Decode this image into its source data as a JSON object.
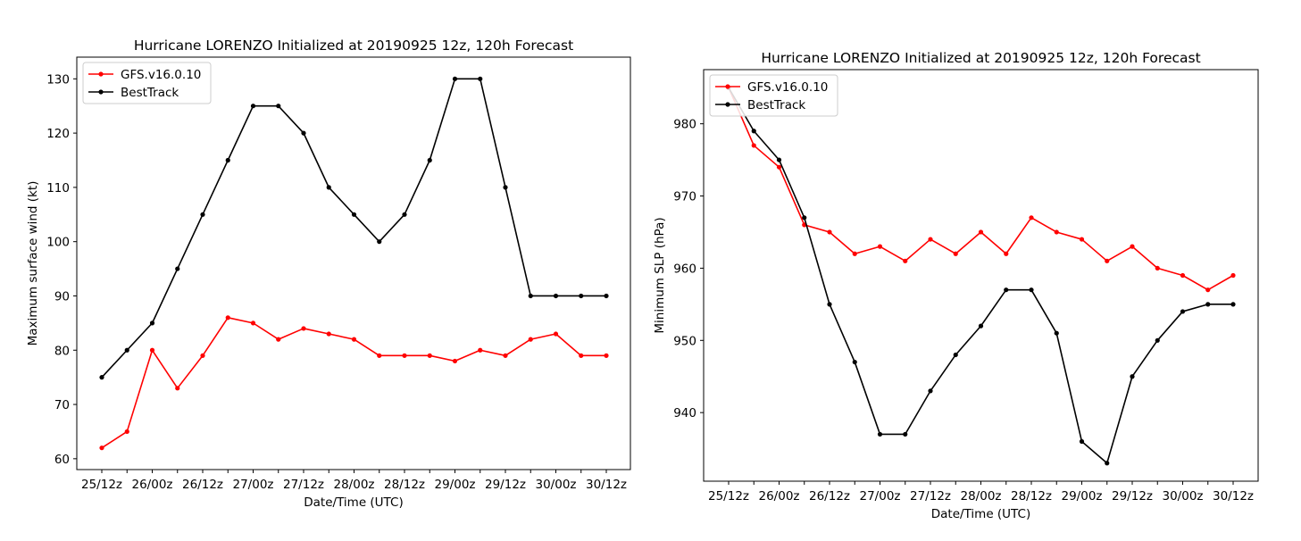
{
  "chart_data": [
    {
      "type": "line",
      "title": "Hurricane LORENZO Initialized at 20190925 12z, 120h Forecast",
      "xlabel": "Date/Time (UTC)",
      "ylabel": "Maximum surface wind (kt)",
      "ylim": [
        58,
        134
      ],
      "yticks": [
        60,
        70,
        80,
        90,
        100,
        110,
        120,
        130
      ],
      "xtick_labels": [
        "25/12z",
        "26/00z",
        "26/12z",
        "27/00z",
        "27/12z",
        "28/00z",
        "28/12z",
        "29/00z",
        "29/12z",
        "30/00z",
        "30/12z"
      ],
      "n_points": 21,
      "grid": false,
      "legend": "upper-left",
      "series": [
        {
          "name": "GFS.v16.0.10",
          "color": "#ff0000",
          "values": [
            62,
            65,
            80,
            73,
            79,
            86,
            85,
            82,
            84,
            83,
            82,
            79,
            79,
            79,
            78,
            80,
            79,
            82,
            83,
            79,
            79
          ]
        },
        {
          "name": "BestTrack",
          "color": "#000000",
          "values": [
            75,
            80,
            85,
            95,
            105,
            115,
            125,
            125,
            120,
            110,
            105,
            100,
            105,
            115,
            130,
            130,
            110,
            90,
            90,
            90,
            90
          ]
        }
      ]
    },
    {
      "type": "line",
      "title": "Hurricane LORENZO Initialized at 20190925 12z, 120h Forecast",
      "xlabel": "Date/Time (UTC)",
      "ylabel": "Minimum SLP (hPa)",
      "ylim": [
        930.5,
        987.5
      ],
      "yticks": [
        940,
        950,
        960,
        970,
        980
      ],
      "xtick_labels": [
        "25/12z",
        "26/00z",
        "26/12z",
        "27/00z",
        "27/12z",
        "28/00z",
        "28/12z",
        "29/00z",
        "29/12z",
        "30/00z",
        "30/12z"
      ],
      "n_points": 21,
      "grid": false,
      "legend": "upper-left",
      "series": [
        {
          "name": "GFS.v16.0.10",
          "color": "#ff0000",
          "values": [
            985,
            977,
            974,
            966,
            965,
            962,
            963,
            961,
            964,
            962,
            965,
            962,
            967,
            965,
            964,
            961,
            963,
            960,
            959,
            957,
            959
          ]
        },
        {
          "name": "BestTrack",
          "color": "#000000",
          "values": [
            985,
            979,
            975,
            967,
            955,
            947,
            937,
            937,
            943,
            948,
            952,
            957,
            957,
            951,
            936,
            933,
            945,
            950,
            954,
            955,
            955
          ]
        }
      ]
    }
  ]
}
